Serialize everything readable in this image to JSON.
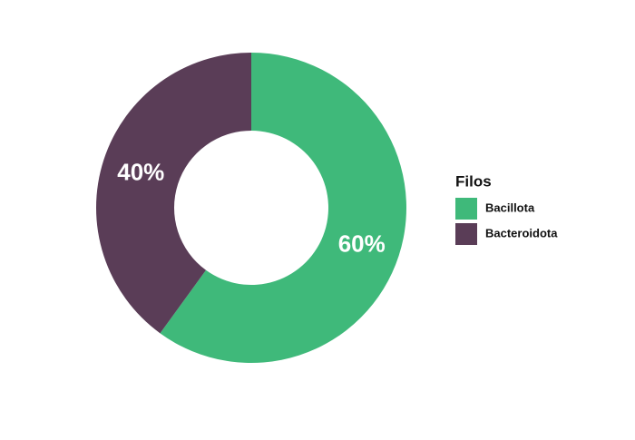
{
  "chart_data": {
    "type": "donut",
    "legend_title": "Filos",
    "legend": "right",
    "categories": [
      "Bacillota",
      "Bacteroidota"
    ],
    "values": [
      60,
      40
    ],
    "value_labels": [
      "60%",
      "40%"
    ],
    "colors": [
      "#3fb97a",
      "#5a3d57"
    ]
  }
}
